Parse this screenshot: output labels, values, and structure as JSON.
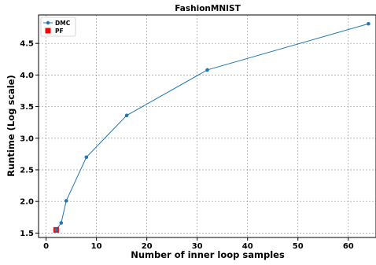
{
  "chart_data": {
    "type": "line",
    "title": "FashionMNIST",
    "xlabel": "Number of inner loop samples",
    "ylabel": "Runtime (Log scale)",
    "xlim": [
      -1.5,
      65.5
    ],
    "ylim": [
      1.43,
      4.95
    ],
    "xticks": [
      0,
      10,
      20,
      30,
      40,
      50,
      60
    ],
    "yticks": [
      1.5,
      2.0,
      2.5,
      3.0,
      3.5,
      4.0,
      4.5
    ],
    "grid": true,
    "legend_position": "top-left",
    "series": [
      {
        "name": "DMC",
        "marker": "circle",
        "color": "#1f77b4",
        "x": [
          2,
          3,
          4,
          8,
          16,
          32,
          64
        ],
        "y": [
          1.55,
          1.66,
          2.01,
          2.7,
          3.36,
          4.08,
          4.81
        ]
      },
      {
        "name": "PF",
        "marker": "square",
        "color": "#ff0000",
        "x": [
          2
        ],
        "y": [
          1.55
        ]
      }
    ]
  }
}
